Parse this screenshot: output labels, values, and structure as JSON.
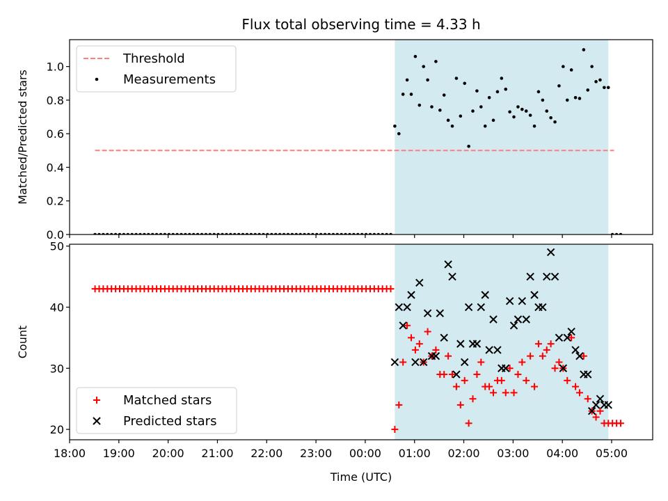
{
  "chart_data": {
    "title": "Flux total observing time = 4.33 h",
    "xlabel": "Time (UTC)",
    "x_ticks": [
      "18:00",
      "19:00",
      "20:00",
      "21:00",
      "22:00",
      "23:00",
      "00:00",
      "01:00",
      "02:00",
      "03:00",
      "04:00",
      "05:00"
    ],
    "xlim": [
      "18:00",
      "05:50"
    ],
    "shaded_interval": {
      "start": "00:36",
      "end": "04:56",
      "color": "#d3eaf0"
    },
    "panels": [
      {
        "type": "scatter",
        "ylabel": "Matched/Predicted stars",
        "ylim": [
          0,
          1.16
        ],
        "y_ticks": [
          "0.0",
          "0.2",
          "0.4",
          "0.6",
          "0.8",
          "1.0"
        ],
        "legend": {
          "position": "top-left",
          "entries": [
            "Threshold",
            "Measurements"
          ]
        },
        "series": [
          {
            "name": "Threshold",
            "kind": "dashed-line",
            "color": "#ff7f7f",
            "points": [
              [
                "18:31",
                0.5
              ],
              [
                "05:03",
                0.5
              ]
            ]
          },
          {
            "name": "Measurements",
            "kind": "dot",
            "color": "#000000",
            "zero_run": {
              "start": "18:31",
              "end": "00:31",
              "step_minutes": 5,
              "value": 0
            },
            "points": [
              [
                "00:36",
                0.645
              ],
              [
                "00:41",
                0.6
              ],
              [
                "00:46",
                0.835
              ],
              [
                "00:51",
                0.92
              ],
              [
                "00:56",
                0.835
              ],
              [
                "01:01",
                1.06
              ],
              [
                "01:06",
                0.77
              ],
              [
                "01:11",
                1.0
              ],
              [
                "01:16",
                0.92
              ],
              [
                "01:21",
                0.76
              ],
              [
                "01:26",
                1.03
              ],
              [
                "01:31",
                0.74
              ],
              [
                "01:36",
                0.83
              ],
              [
                "01:41",
                0.68
              ],
              [
                "01:46",
                0.645
              ],
              [
                "01:51",
                0.93
              ],
              [
                "01:56",
                0.705
              ],
              [
                "02:01",
                0.9
              ],
              [
                "02:06",
                0.525
              ],
              [
                "02:11",
                0.735
              ],
              [
                "02:16",
                0.855
              ],
              [
                "02:21",
                0.76
              ],
              [
                "02:26",
                0.645
              ],
              [
                "02:31",
                0.815
              ],
              [
                "02:36",
                0.68
              ],
              [
                "02:41",
                0.85
              ],
              [
                "02:46",
                0.93
              ],
              [
                "02:51",
                0.865
              ],
              [
                "02:56",
                0.73
              ],
              [
                "03:01",
                0.7
              ],
              [
                "03:06",
                0.76
              ],
              [
                "03:11",
                0.745
              ],
              [
                "03:16",
                0.735
              ],
              [
                "03:21",
                0.71
              ],
              [
                "03:26",
                0.645
              ],
              [
                "03:31",
                0.85
              ],
              [
                "03:36",
                0.8
              ],
              [
                "03:41",
                0.735
              ],
              [
                "03:46",
                0.695
              ],
              [
                "03:51",
                0.67
              ],
              [
                "03:56",
                0.885
              ],
              [
                "04:01",
                1.0
              ],
              [
                "04:06",
                0.8
              ],
              [
                "04:11",
                0.98
              ],
              [
                "04:16",
                0.815
              ],
              [
                "04:21",
                0.81
              ],
              [
                "04:26",
                1.1
              ],
              [
                "04:31",
                0.86
              ],
              [
                "04:36",
                1.0
              ],
              [
                "04:41",
                0.91
              ],
              [
                "04:46",
                0.92
              ],
              [
                "04:51",
                0.875
              ],
              [
                "04:56",
                0.875
              ],
              [
                "05:01",
                0
              ],
              [
                "05:06",
                0
              ],
              [
                "05:11",
                0
              ]
            ]
          }
        ]
      },
      {
        "type": "scatter",
        "ylabel": "Count",
        "ylim": [
          18.3,
          50.3
        ],
        "y_ticks": [
          "20",
          "30",
          "40",
          "50"
        ],
        "legend": {
          "position": "bottom-left",
          "entries": [
            "Matched stars",
            "Predicted stars"
          ]
        },
        "series": [
          {
            "name": "Matched stars",
            "kind": "plus",
            "color": "#ff0000",
            "constant_run": {
              "start": "18:31",
              "end": "00:31",
              "step_minutes": 5,
              "value": 43
            },
            "points": [
              [
                "00:36",
                20
              ],
              [
                "00:41",
                24
              ],
              [
                "00:46",
                31
              ],
              [
                "00:51",
                37
              ],
              [
                "00:56",
                35
              ],
              [
                "01:01",
                33
              ],
              [
                "01:06",
                34
              ],
              [
                "01:11",
                31
              ],
              [
                "01:16",
                36
              ],
              [
                "01:21",
                32
              ],
              [
                "01:26",
                33
              ],
              [
                "01:31",
                29
              ],
              [
                "01:36",
                29
              ],
              [
                "01:41",
                32
              ],
              [
                "01:46",
                29
              ],
              [
                "01:51",
                27
              ],
              [
                "01:56",
                24
              ],
              [
                "02:01",
                28
              ],
              [
                "02:06",
                21
              ],
              [
                "02:11",
                25
              ],
              [
                "02:16",
                29
              ],
              [
                "02:21",
                31
              ],
              [
                "02:26",
                27
              ],
              [
                "02:31",
                27
              ],
              [
                "02:36",
                26
              ],
              [
                "02:41",
                28
              ],
              [
                "02:46",
                28
              ],
              [
                "02:51",
                26
              ],
              [
                "02:56",
                30
              ],
              [
                "03:01",
                26
              ],
              [
                "03:06",
                29
              ],
              [
                "03:11",
                31
              ],
              [
                "03:16",
                28
              ],
              [
                "03:21",
                32
              ],
              [
                "03:26",
                27
              ],
              [
                "03:31",
                34
              ],
              [
                "03:36",
                32
              ],
              [
                "03:41",
                33
              ],
              [
                "03:46",
                34
              ],
              [
                "03:51",
                30
              ],
              [
                "03:56",
                31
              ],
              [
                "04:01",
                30
              ],
              [
                "04:06",
                28
              ],
              [
                "04:11",
                35
              ],
              [
                "04:16",
                27
              ],
              [
                "04:21",
                26
              ],
              [
                "04:26",
                32
              ],
              [
                "04:31",
                25
              ],
              [
                "04:36",
                23
              ],
              [
                "04:41",
                22
              ],
              [
                "04:46",
                23
              ],
              [
                "04:51",
                21
              ],
              [
                "04:56",
                21
              ],
              [
                "05:01",
                21
              ],
              [
                "05:06",
                21
              ],
              [
                "05:11",
                21
              ]
            ]
          },
          {
            "name": "Predicted stars",
            "kind": "cross",
            "color": "#000000",
            "points": [
              [
                "00:36",
                31
              ],
              [
                "00:41",
                40
              ],
              [
                "00:46",
                37
              ],
              [
                "00:51",
                40
              ],
              [
                "00:56",
                42
              ],
              [
                "01:01",
                31
              ],
              [
                "01:06",
                44
              ],
              [
                "01:11",
                31
              ],
              [
                "01:16",
                39
              ],
              [
                "01:21",
                32
              ],
              [
                "01:26",
                32
              ],
              [
                "01:31",
                39
              ],
              [
                "01:36",
                35
              ],
              [
                "01:41",
                47
              ],
              [
                "01:46",
                45
              ],
              [
                "01:51",
                29
              ],
              [
                "01:56",
                34
              ],
              [
                "02:01",
                31
              ],
              [
                "02:06",
                40
              ],
              [
                "02:11",
                34
              ],
              [
                "02:16",
                34
              ],
              [
                "02:21",
                40
              ],
              [
                "02:26",
                42
              ],
              [
                "02:31",
                33
              ],
              [
                "02:36",
                38
              ],
              [
                "02:41",
                33
              ],
              [
                "02:46",
                30
              ],
              [
                "02:51",
                30
              ],
              [
                "02:56",
                41
              ],
              [
                "03:01",
                37
              ],
              [
                "03:06",
                38
              ],
              [
                "03:11",
                41
              ],
              [
                "03:16",
                38
              ],
              [
                "03:21",
                45
              ],
              [
                "03:26",
                42
              ],
              [
                "03:31",
                40
              ],
              [
                "03:36",
                40
              ],
              [
                "03:41",
                45
              ],
              [
                "03:46",
                49
              ],
              [
                "03:51",
                45
              ],
              [
                "03:56",
                35
              ],
              [
                "04:01",
                30
              ],
              [
                "04:06",
                35
              ],
              [
                "04:11",
                36
              ],
              [
                "04:16",
                33
              ],
              [
                "04:21",
                32
              ],
              [
                "04:26",
                29
              ],
              [
                "04:31",
                29
              ],
              [
                "04:36",
                23
              ],
              [
                "04:41",
                24
              ],
              [
                "04:46",
                25
              ],
              [
                "04:51",
                24
              ],
              [
                "04:56",
                24
              ]
            ]
          }
        ]
      }
    ]
  }
}
